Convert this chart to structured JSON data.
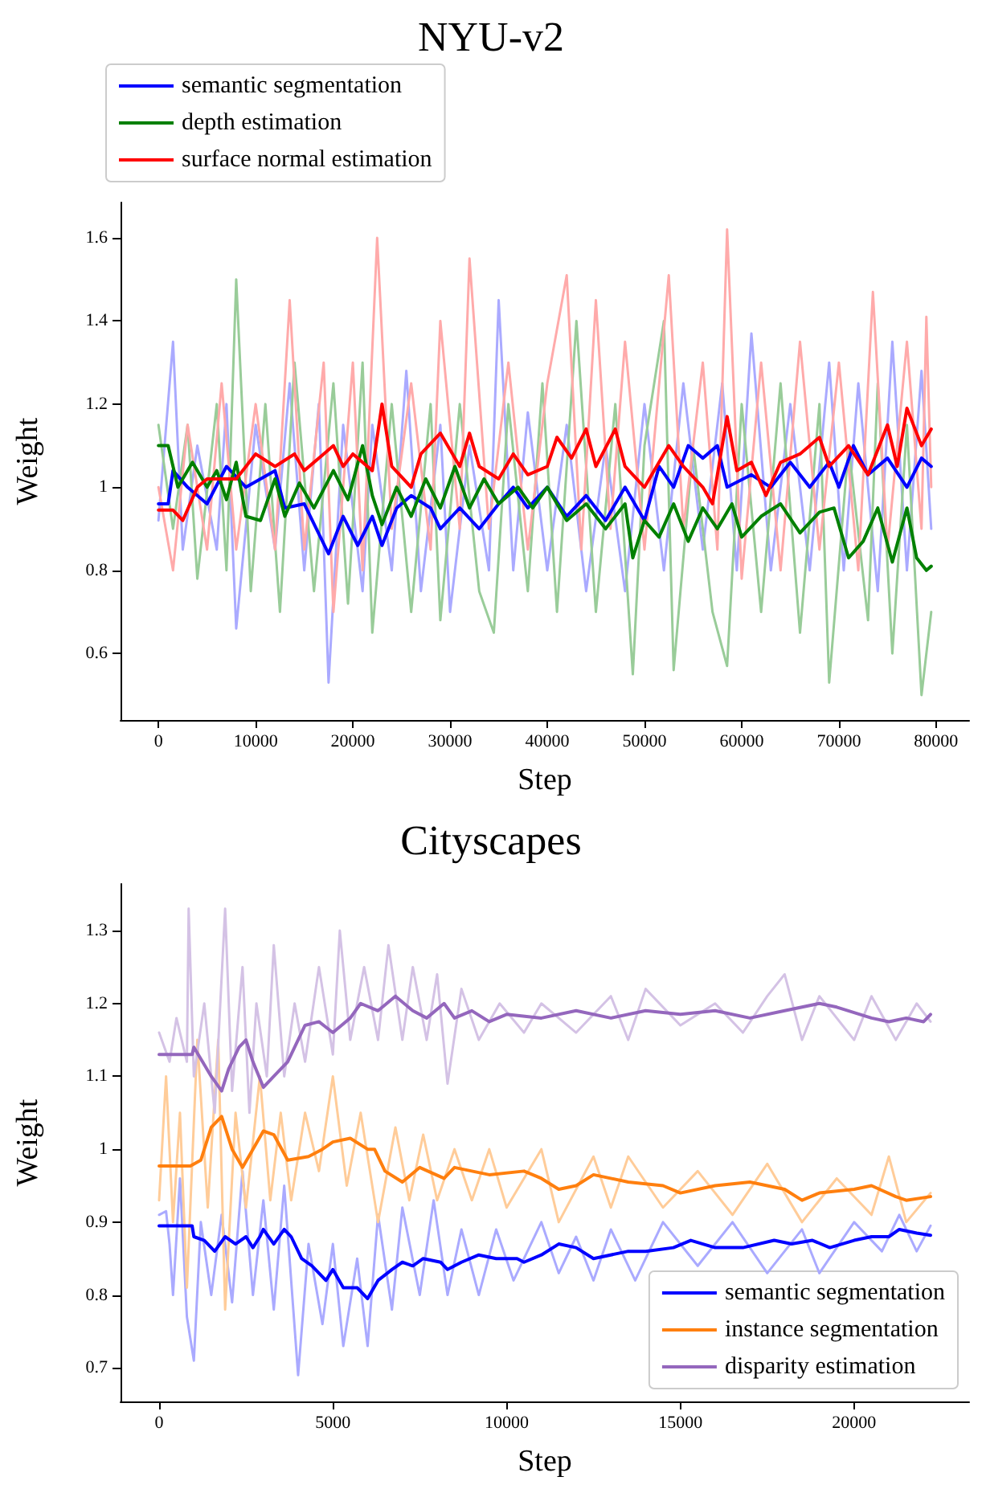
{
  "chart_data": [
    {
      "type": "line",
      "title": "NYU-v2",
      "xlabel": "Step",
      "ylabel": "Weight",
      "legend": "top left",
      "grid": false,
      "xlim": [
        -3900,
        83400
      ],
      "ylim": [
        0.44,
        1.685
      ],
      "xticks": [
        0,
        10000,
        20000,
        30000,
        40000,
        50000,
        60000,
        70000,
        80000
      ],
      "yticks": [
        0.6,
        0.8,
        1.0,
        1.2,
        1.4,
        1.6
      ],
      "series": [
        {
          "color": "#aaaaff",
          "x": [
            0,
            1500,
            2500,
            4000,
            6000,
            7000,
            8000,
            10000,
            12000,
            13500,
            15000,
            16500,
            17500,
            19000,
            21000,
            22000,
            24000,
            25500,
            27000,
            29000,
            30000,
            32000,
            34000,
            35000,
            36500,
            38000,
            40000,
            42000,
            44000,
            46000,
            48000,
            50000,
            52000,
            54000,
            56000,
            58000,
            59500,
            61000,
            63000,
            65000,
            67000,
            69000,
            70500,
            72000,
            74000,
            75500,
            77000,
            78500,
            79500
          ],
          "values": [
            0.92,
            1.35,
            0.85,
            1.1,
            0.85,
            1.2,
            0.66,
            1.15,
            0.85,
            1.25,
            0.8,
            1.2,
            0.53,
            1.15,
            0.75,
            1.15,
            0.8,
            1.28,
            0.75,
            1.15,
            0.7,
            1.1,
            0.8,
            1.45,
            0.8,
            1.18,
            0.8,
            1.15,
            0.75,
            1.1,
            0.75,
            1.2,
            0.8,
            1.25,
            0.85,
            1.25,
            0.8,
            1.37,
            0.8,
            1.2,
            0.8,
            1.3,
            0.8,
            1.25,
            0.75,
            1.35,
            0.8,
            1.28,
            0.9
          ]
        },
        {
          "color": "#99cc99",
          "x": [
            0,
            1500,
            3000,
            4000,
            6000,
            7000,
            8000,
            9500,
            11000,
            12500,
            14000,
            16000,
            18000,
            19500,
            21000,
            22000,
            24000,
            26000,
            28000,
            29000,
            31000,
            33000,
            34500,
            36000,
            38000,
            39500,
            41000,
            43000,
            45000,
            47000,
            48800,
            50000,
            52000,
            53000,
            55000,
            57000,
            58500,
            60000,
            62000,
            64000,
            66000,
            68000,
            69000,
            71000,
            73000,
            74000,
            75500,
            77000,
            78500,
            79500
          ],
          "values": [
            1.15,
            0.9,
            1.15,
            0.78,
            1.2,
            0.8,
            1.5,
            0.75,
            1.2,
            0.7,
            1.3,
            0.75,
            1.25,
            0.72,
            1.3,
            0.65,
            1.2,
            0.7,
            1.2,
            0.68,
            1.2,
            0.75,
            0.65,
            1.2,
            0.75,
            1.25,
            0.7,
            1.4,
            0.7,
            1.2,
            0.55,
            1.1,
            1.4,
            0.56,
            1.1,
            0.7,
            0.57,
            1.2,
            0.7,
            1.25,
            0.65,
            1.2,
            0.53,
            1.1,
            0.68,
            1.25,
            0.6,
            1.15,
            0.5,
            0.7
          ]
        },
        {
          "color": "#ffaaaa",
          "x": [
            0,
            1500,
            3000,
            5000,
            6500,
            8000,
            10000,
            12000,
            13500,
            15000,
            17000,
            18000,
            20000,
            21000,
            22500,
            24000,
            26000,
            28000,
            29000,
            31000,
            32000,
            34000,
            36000,
            38000,
            40000,
            42000,
            43500,
            45000,
            46500,
            48000,
            50000,
            52500,
            54000,
            56000,
            57500,
            58500,
            60000,
            62000,
            64000,
            66000,
            68000,
            70000,
            72000,
            73500,
            75000,
            77000,
            78500,
            79000,
            79500
          ],
          "values": [
            1.0,
            0.8,
            1.15,
            0.85,
            1.25,
            0.85,
            1.2,
            0.85,
            1.45,
            0.85,
            1.3,
            0.7,
            1.3,
            0.8,
            1.6,
            0.9,
            1.25,
            0.85,
            1.4,
            0.9,
            1.55,
            0.9,
            1.3,
            0.85,
            1.25,
            1.51,
            0.85,
            1.45,
            0.9,
            1.35,
            0.85,
            1.51,
            0.9,
            1.3,
            0.85,
            1.62,
            0.78,
            1.3,
            0.8,
            1.35,
            0.85,
            1.3,
            0.8,
            1.47,
            0.85,
            1.35,
            0.9,
            1.41,
            1.0
          ]
        },
        {
          "name": "semantic segmentation",
          "color": "#0000ff",
          "x": [
            0,
            1000,
            1500,
            3000,
            5000,
            7000,
            9000,
            12000,
            13000,
            15000,
            17500,
            19000,
            20500,
            22000,
            23000,
            24500,
            26000,
            28000,
            29000,
            31000,
            33000,
            35000,
            36500,
            38000,
            40000,
            42000,
            44000,
            46000,
            48000,
            50000,
            51500,
            53000,
            54500,
            56000,
            57500,
            58500,
            61000,
            63000,
            65000,
            67000,
            69000,
            70000,
            71500,
            73000,
            75000,
            77000,
            78500,
            79500
          ],
          "values": [
            0.96,
            0.96,
            1.04,
            1.0,
            0.96,
            1.05,
            1.0,
            1.04,
            0.95,
            0.96,
            0.84,
            0.93,
            0.86,
            0.93,
            0.86,
            0.95,
            0.98,
            0.95,
            0.9,
            0.95,
            0.9,
            0.96,
            1.0,
            0.95,
            1.0,
            0.93,
            0.98,
            0.92,
            1.0,
            0.92,
            1.05,
            1.0,
            1.1,
            1.07,
            1.1,
            1.0,
            1.03,
            1.0,
            1.06,
            1.0,
            1.06,
            1.0,
            1.1,
            1.03,
            1.07,
            1.0,
            1.07,
            1.05
          ]
        },
        {
          "name": "depth estimation",
          "color": "#008000",
          "x": [
            0,
            1000,
            2000,
            3500,
            5000,
            6000,
            7000,
            8000,
            9000,
            10500,
            12000,
            13000,
            14500,
            16000,
            18000,
            19500,
            21000,
            22000,
            23000,
            24500,
            26000,
            27500,
            29000,
            30500,
            32000,
            33500,
            35000,
            37000,
            38500,
            40000,
            42000,
            44000,
            46000,
            48000,
            48800,
            50000,
            51500,
            53000,
            54500,
            56000,
            57500,
            59000,
            60000,
            62000,
            64000,
            66000,
            68000,
            69500,
            71000,
            72500,
            74000,
            75500,
            77000,
            78000,
            79000,
            79500
          ],
          "values": [
            1.1,
            1.1,
            1.0,
            1.06,
            1.0,
            1.04,
            0.97,
            1.06,
            0.93,
            0.92,
            1.02,
            0.93,
            1.01,
            0.95,
            1.04,
            0.97,
            1.1,
            0.98,
            0.91,
            1.0,
            0.93,
            1.02,
            0.95,
            1.05,
            0.95,
            1.02,
            0.96,
            1.0,
            0.95,
            1.0,
            0.92,
            0.96,
            0.9,
            0.96,
            0.83,
            0.92,
            0.88,
            0.96,
            0.87,
            0.95,
            0.9,
            0.96,
            0.88,
            0.93,
            0.96,
            0.89,
            0.94,
            0.95,
            0.83,
            0.87,
            0.95,
            0.82,
            0.95,
            0.83,
            0.8,
            0.81
          ]
        },
        {
          "name": "surface normal estimation",
          "color": "#ff0000",
          "x": [
            0,
            1500,
            2500,
            4000,
            5000,
            8000,
            9000,
            10000,
            12000,
            14000,
            15000,
            17000,
            18000,
            19000,
            20000,
            22000,
            23000,
            24000,
            26000,
            27000,
            29000,
            30000,
            31000,
            32000,
            33000,
            35000,
            36500,
            38000,
            40000,
            41000,
            42500,
            44000,
            45000,
            47000,
            48000,
            50000,
            52500,
            54000,
            56000,
            57000,
            58500,
            59500,
            61000,
            62500,
            64000,
            66000,
            68000,
            69000,
            71000,
            73000,
            75000,
            76000,
            77000,
            78500,
            79500
          ],
          "values": [
            0.945,
            0.945,
            0.92,
            1.0,
            1.02,
            1.02,
            1.05,
            1.08,
            1.05,
            1.08,
            1.04,
            1.08,
            1.1,
            1.05,
            1.08,
            1.04,
            1.2,
            1.05,
            1.0,
            1.08,
            1.13,
            1.09,
            1.05,
            1.13,
            1.05,
            1.02,
            1.08,
            1.03,
            1.05,
            1.12,
            1.07,
            1.14,
            1.05,
            1.14,
            1.05,
            1.0,
            1.1,
            1.05,
            1.0,
            0.96,
            1.17,
            1.04,
            1.06,
            0.98,
            1.06,
            1.08,
            1.12,
            1.05,
            1.1,
            1.03,
            1.15,
            1.05,
            1.19,
            1.1,
            1.14
          ]
        }
      ]
    },
    {
      "type": "line",
      "title": "Cityscapes",
      "xlabel": "Step",
      "ylabel": "Weight",
      "legend": "bottom right",
      "grid": false,
      "xlim": [
        -1110,
        23310
      ],
      "ylim": [
        0.654,
        1.364
      ],
      "xticks": [
        0,
        5000,
        10000,
        15000,
        20000
      ],
      "yticks": [
        0.7,
        0.8,
        0.9,
        1.0,
        1.1,
        1.2,
        1.3
      ],
      "series": [
        {
          "color": "#aaaaff",
          "x": [
            0,
            200,
            300,
            400,
            600,
            800,
            1000,
            1200,
            1500,
            1800,
            2100,
            2400,
            2700,
            3000,
            3300,
            3600,
            4000,
            4300,
            4700,
            5000,
            5300,
            5700,
            6000,
            6300,
            6700,
            7000,
            7500,
            7900,
            8300,
            8700,
            9200,
            9700,
            10200,
            11000,
            11500,
            12000,
            12500,
            13000,
            13700,
            14500,
            15500,
            16500,
            17500,
            18500,
            19000,
            20000,
            20800,
            21300,
            21800,
            22200
          ],
          "values": [
            0.91,
            0.915,
            0.87,
            0.8,
            0.96,
            0.77,
            0.71,
            0.9,
            0.8,
            0.91,
            0.79,
            0.97,
            0.8,
            0.93,
            0.78,
            0.95,
            0.69,
            0.87,
            0.76,
            0.87,
            0.73,
            0.85,
            0.73,
            0.91,
            0.78,
            0.92,
            0.8,
            0.93,
            0.8,
            0.89,
            0.8,
            0.89,
            0.82,
            0.9,
            0.83,
            0.88,
            0.82,
            0.89,
            0.82,
            0.9,
            0.84,
            0.9,
            0.83,
            0.89,
            0.83,
            0.9,
            0.86,
            0.91,
            0.86,
            0.895
          ]
        },
        {
          "color": "#ffcc99",
          "x": [
            0,
            200,
            400,
            600,
            800,
            1100,
            1400,
            1700,
            1900,
            2200,
            2500,
            2900,
            3200,
            3500,
            3800,
            4200,
            4600,
            5000,
            5400,
            5800,
            6300,
            6800,
            7200,
            7600,
            8000,
            8500,
            9000,
            9500,
            10000,
            11000,
            11500,
            12500,
            13000,
            13500,
            14500,
            15500,
            16500,
            17500,
            18500,
            19500,
            20500,
            21000,
            21500,
            22200
          ],
          "values": [
            0.93,
            1.1,
            0.9,
            1.05,
            0.81,
            1.15,
            0.92,
            1.15,
            0.78,
            1.05,
            0.92,
            1.1,
            0.93,
            1.05,
            0.93,
            1.05,
            0.97,
            1.1,
            0.95,
            1.05,
            0.9,
            1.03,
            0.93,
            1.02,
            0.93,
            1.0,
            0.93,
            1.0,
            0.92,
            1.0,
            0.9,
            0.99,
            0.92,
            0.99,
            0.92,
            0.97,
            0.91,
            0.98,
            0.9,
            0.96,
            0.91,
            0.99,
            0.9,
            0.94
          ]
        },
        {
          "color": "#d4c2e5",
          "x": [
            0,
            300,
            500,
            800,
            850,
            1000,
            1300,
            1600,
            1900,
            2100,
            2400,
            2600,
            2800,
            3100,
            3300,
            3600,
            3900,
            4200,
            4600,
            5000,
            5200,
            5500,
            5900,
            6300,
            6600,
            7000,
            7300,
            7700,
            8000,
            8300,
            8700,
            9200,
            9800,
            10500,
            11000,
            12000,
            13000,
            13500,
            14000,
            15000,
            16000,
            16800,
            17500,
            18000,
            18500,
            19000,
            20000,
            20500,
            21200,
            21800,
            22200
          ],
          "values": [
            1.16,
            1.12,
            1.18,
            1.12,
            1.33,
            1.1,
            1.2,
            1.05,
            1.33,
            1.08,
            1.25,
            1.05,
            1.2,
            1.1,
            1.28,
            1.1,
            1.2,
            1.12,
            1.25,
            1.13,
            1.3,
            1.15,
            1.25,
            1.15,
            1.28,
            1.15,
            1.25,
            1.15,
            1.24,
            1.09,
            1.22,
            1.15,
            1.2,
            1.16,
            1.2,
            1.16,
            1.21,
            1.15,
            1.22,
            1.17,
            1.2,
            1.16,
            1.21,
            1.24,
            1.15,
            1.21,
            1.15,
            1.21,
            1.15,
            1.2,
            1.175
          ]
        },
        {
          "name": "semantic segmentation",
          "color": "#0000ff",
          "x": [
            0,
            950,
            1000,
            1300,
            1600,
            1900,
            2200,
            2500,
            2700,
            2900,
            3000,
            3300,
            3600,
            3800,
            4100,
            4400,
            4800,
            5000,
            5300,
            5700,
            6000,
            6300,
            6700,
            7000,
            7300,
            7600,
            8100,
            8300,
            8700,
            9200,
            9700,
            10300,
            10500,
            11000,
            11500,
            12000,
            12500,
            13500,
            14000,
            14800,
            15300,
            16000,
            16800,
            17700,
            18200,
            18800,
            19300,
            20000,
            20500,
            21000,
            21300,
            21800,
            22200
          ],
          "values": [
            0.895,
            0.895,
            0.88,
            0.875,
            0.86,
            0.88,
            0.87,
            0.88,
            0.865,
            0.88,
            0.89,
            0.87,
            0.89,
            0.88,
            0.85,
            0.84,
            0.82,
            0.835,
            0.81,
            0.81,
            0.795,
            0.82,
            0.835,
            0.845,
            0.84,
            0.85,
            0.845,
            0.835,
            0.845,
            0.855,
            0.85,
            0.85,
            0.845,
            0.855,
            0.87,
            0.865,
            0.85,
            0.86,
            0.86,
            0.865,
            0.875,
            0.865,
            0.865,
            0.875,
            0.87,
            0.875,
            0.865,
            0.875,
            0.88,
            0.88,
            0.89,
            0.885,
            0.882
          ]
        },
        {
          "name": "instance segmentation",
          "color": "#ff7f0e",
          "x": [
            0,
            900,
            1200,
            1500,
            1800,
            2100,
            2400,
            2700,
            3000,
            3300,
            3700,
            4300,
            4700,
            5000,
            5500,
            6000,
            6200,
            6500,
            7000,
            7500,
            8200,
            8500,
            9500,
            10500,
            11000,
            11500,
            12000,
            12500,
            13500,
            14500,
            15000,
            16000,
            17000,
            18000,
            18500,
            19000,
            20000,
            20500,
            21200,
            21500,
            22200
          ],
          "values": [
            0.977,
            0.977,
            0.985,
            1.03,
            1.045,
            1.0,
            0.975,
            1.0,
            1.025,
            1.02,
            0.985,
            0.99,
            1.0,
            1.01,
            1.015,
            1.0,
            1.0,
            0.97,
            0.955,
            0.975,
            0.96,
            0.975,
            0.965,
            0.97,
            0.96,
            0.945,
            0.95,
            0.965,
            0.955,
            0.95,
            0.94,
            0.95,
            0.955,
            0.945,
            0.93,
            0.94,
            0.945,
            0.95,
            0.935,
            0.93,
            0.935
          ]
        },
        {
          "name": "disparity estimation",
          "color": "#9467bd",
          "x": [
            0,
            950,
            1000,
            1500,
            1800,
            2000,
            2300,
            2500,
            2700,
            3000,
            3300,
            3700,
            4200,
            4600,
            5000,
            5500,
            5800,
            6300,
            6800,
            7300,
            7700,
            8200,
            8500,
            9000,
            9500,
            10000,
            11000,
            12000,
            13000,
            14000,
            15000,
            16000,
            17000,
            18000,
            19000,
            19500,
            20500,
            21000,
            21500,
            22000,
            22200
          ],
          "values": [
            1.13,
            1.13,
            1.14,
            1.1,
            1.08,
            1.11,
            1.14,
            1.15,
            1.12,
            1.085,
            1.1,
            1.12,
            1.17,
            1.175,
            1.16,
            1.18,
            1.2,
            1.19,
            1.21,
            1.19,
            1.18,
            1.2,
            1.18,
            1.19,
            1.175,
            1.185,
            1.18,
            1.19,
            1.18,
            1.19,
            1.185,
            1.19,
            1.18,
            1.19,
            1.2,
            1.195,
            1.18,
            1.175,
            1.18,
            1.175,
            1.185
          ]
        }
      ]
    }
  ]
}
